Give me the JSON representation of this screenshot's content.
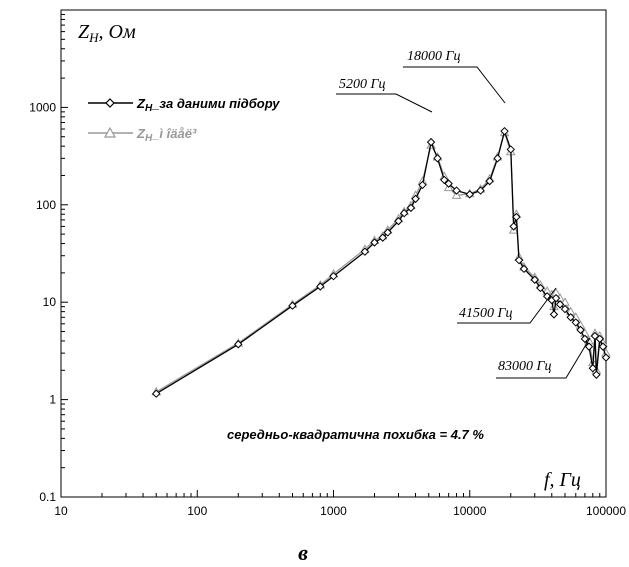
{
  "chart_data": {
    "type": "line",
    "x_scale": "log",
    "y_scale": "log",
    "xlim": [
      10,
      100000
    ],
    "ylim": [
      0.1,
      10000
    ],
    "x_ticks": [
      "10",
      "100",
      "1000",
      "10000",
      "100000"
    ],
    "y_ticks": [
      "0.1",
      "1",
      "10",
      "100",
      "1000"
    ],
    "xlabel": "f, Гц",
    "ylabel": "Z",
    "ylabel_sub": "Н",
    "ylabel_unit": ", Ом",
    "panel_label": "в",
    "note": "середньо-квадратична похибка = 4.7 %",
    "legend_position": "top-left",
    "series": [
      {
        "name": "Z",
        "name_sub": "Н",
        "name_suffix": "_за даними підбору",
        "color": "#000000",
        "marker": "diamond",
        "x": [
          50,
          200,
          500,
          800,
          1000,
          1700,
          2000,
          2300,
          2500,
          3000,
          3300,
          3700,
          4000,
          4500,
          5200,
          5800,
          6500,
          7000,
          8000,
          10000,
          12000,
          14000,
          16000,
          18000,
          20000,
          21000,
          22000,
          23000,
          25000,
          30000,
          33000,
          37000,
          40000,
          41500,
          43000,
          46000,
          50000,
          55000,
          60000,
          65000,
          70000,
          75000,
          80000,
          83000,
          85000,
          90000,
          95000,
          100000
        ],
        "values": [
          1.15,
          3.7,
          9.2,
          14.5,
          18.5,
          33,
          41,
          46,
          52,
          68,
          82,
          93,
          115,
          160,
          440,
          300,
          180,
          165,
          140,
          128,
          140,
          175,
          300,
          570,
          370,
          60,
          75,
          27,
          22,
          17,
          14,
          11.5,
          10.5,
          7.5,
          11,
          9.5,
          8.5,
          7,
          6.2,
          5.2,
          4.2,
          3.5,
          2.1,
          4.5,
          1.8,
          4.2,
          3.5,
          2.7
        ]
      },
      {
        "name": "Z",
        "name_sub": "Н",
        "name_suffix": "_ì îäåë³",
        "color": "#999999",
        "marker": "triangle",
        "x": [
          50,
          200,
          500,
          800,
          1000,
          1700,
          2000,
          2300,
          2500,
          3000,
          3300,
          3700,
          4000,
          4500,
          5200,
          5800,
          6500,
          7000,
          8000,
          10000,
          12000,
          14000,
          16000,
          18000,
          20000,
          21000,
          22000,
          23000,
          25000,
          30000,
          33000,
          37000,
          40000,
          41500,
          43000,
          46000,
          50000,
          55000,
          60000,
          65000,
          70000,
          75000,
          80000,
          83000,
          85000,
          90000,
          95000,
          100000
        ],
        "values": [
          1.2,
          3.8,
          9.5,
          15,
          19.5,
          35,
          43,
          48,
          55,
          72,
          85,
          98,
          125,
          175,
          410,
          310,
          195,
          150,
          125,
          130,
          145,
          185,
          310,
          550,
          350,
          55,
          80,
          29,
          23,
          18,
          15,
          13,
          12,
          9,
          12.5,
          11,
          10,
          8,
          7,
          5.8,
          4.8,
          4,
          2.4,
          4.8,
          2,
          4.5,
          3.8,
          3
        ]
      }
    ],
    "annotations": [
      "5200 Гц",
      "18000 Гц",
      "41500 Гц",
      "83000 Гц"
    ]
  }
}
